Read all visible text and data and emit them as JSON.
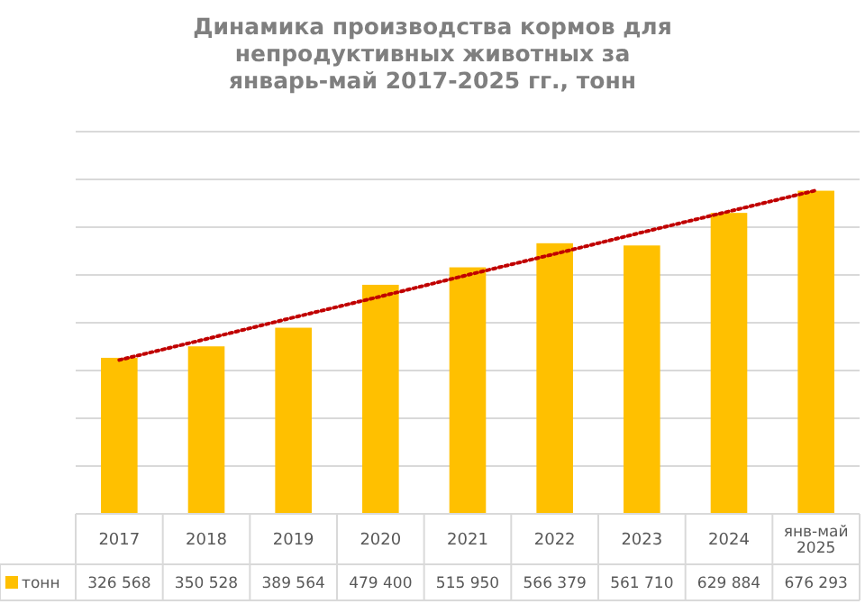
{
  "chart_data": {
    "type": "bar",
    "title": "Динамика производства кормов для непродуктивных животных за январь-май 2017-2025 гг., тонн",
    "categories": [
      "2017",
      "2018",
      "2019",
      "2020",
      "2021",
      "2022",
      "2023",
      "2024",
      "янв-май 2025"
    ],
    "series": [
      {
        "name": "тонн",
        "color": "#ffc000",
        "values": [
          326568,
          350528,
          389564,
          479400,
          515950,
          566379,
          561710,
          629884,
          676293
        ],
        "value_labels": [
          "326 568",
          "350 528",
          "389 564",
          "479 400",
          "515 950",
          "566 379",
          "561 710",
          "629 884",
          "676 293"
        ]
      },
      {
        "type": "line",
        "color": "#c00000",
        "line_style": "dotted",
        "marker": "none",
        "values": [
          322000,
          366000,
          411000,
          455000,
          500000,
          544000,
          589000,
          633000,
          677000
        ]
      }
    ],
    "ylim": [
      0,
      800000
    ],
    "yticks": [
      {
        "value": 0,
        "label": null
      },
      {
        "value": 100000,
        "label": null
      },
      {
        "value": 200000,
        "label": null
      },
      {
        "value": 300000,
        "label": null
      },
      {
        "value": 400000,
        "label": null
      },
      {
        "value": 500000,
        "label": null
      },
      {
        "value": 600000,
        "label": null
      },
      {
        "value": 700000,
        "label": null
      },
      {
        "value": 800000,
        "label": null
      }
    ],
    "tick_labels": "x",
    "grid": "y",
    "legend": "bottom"
  }
}
